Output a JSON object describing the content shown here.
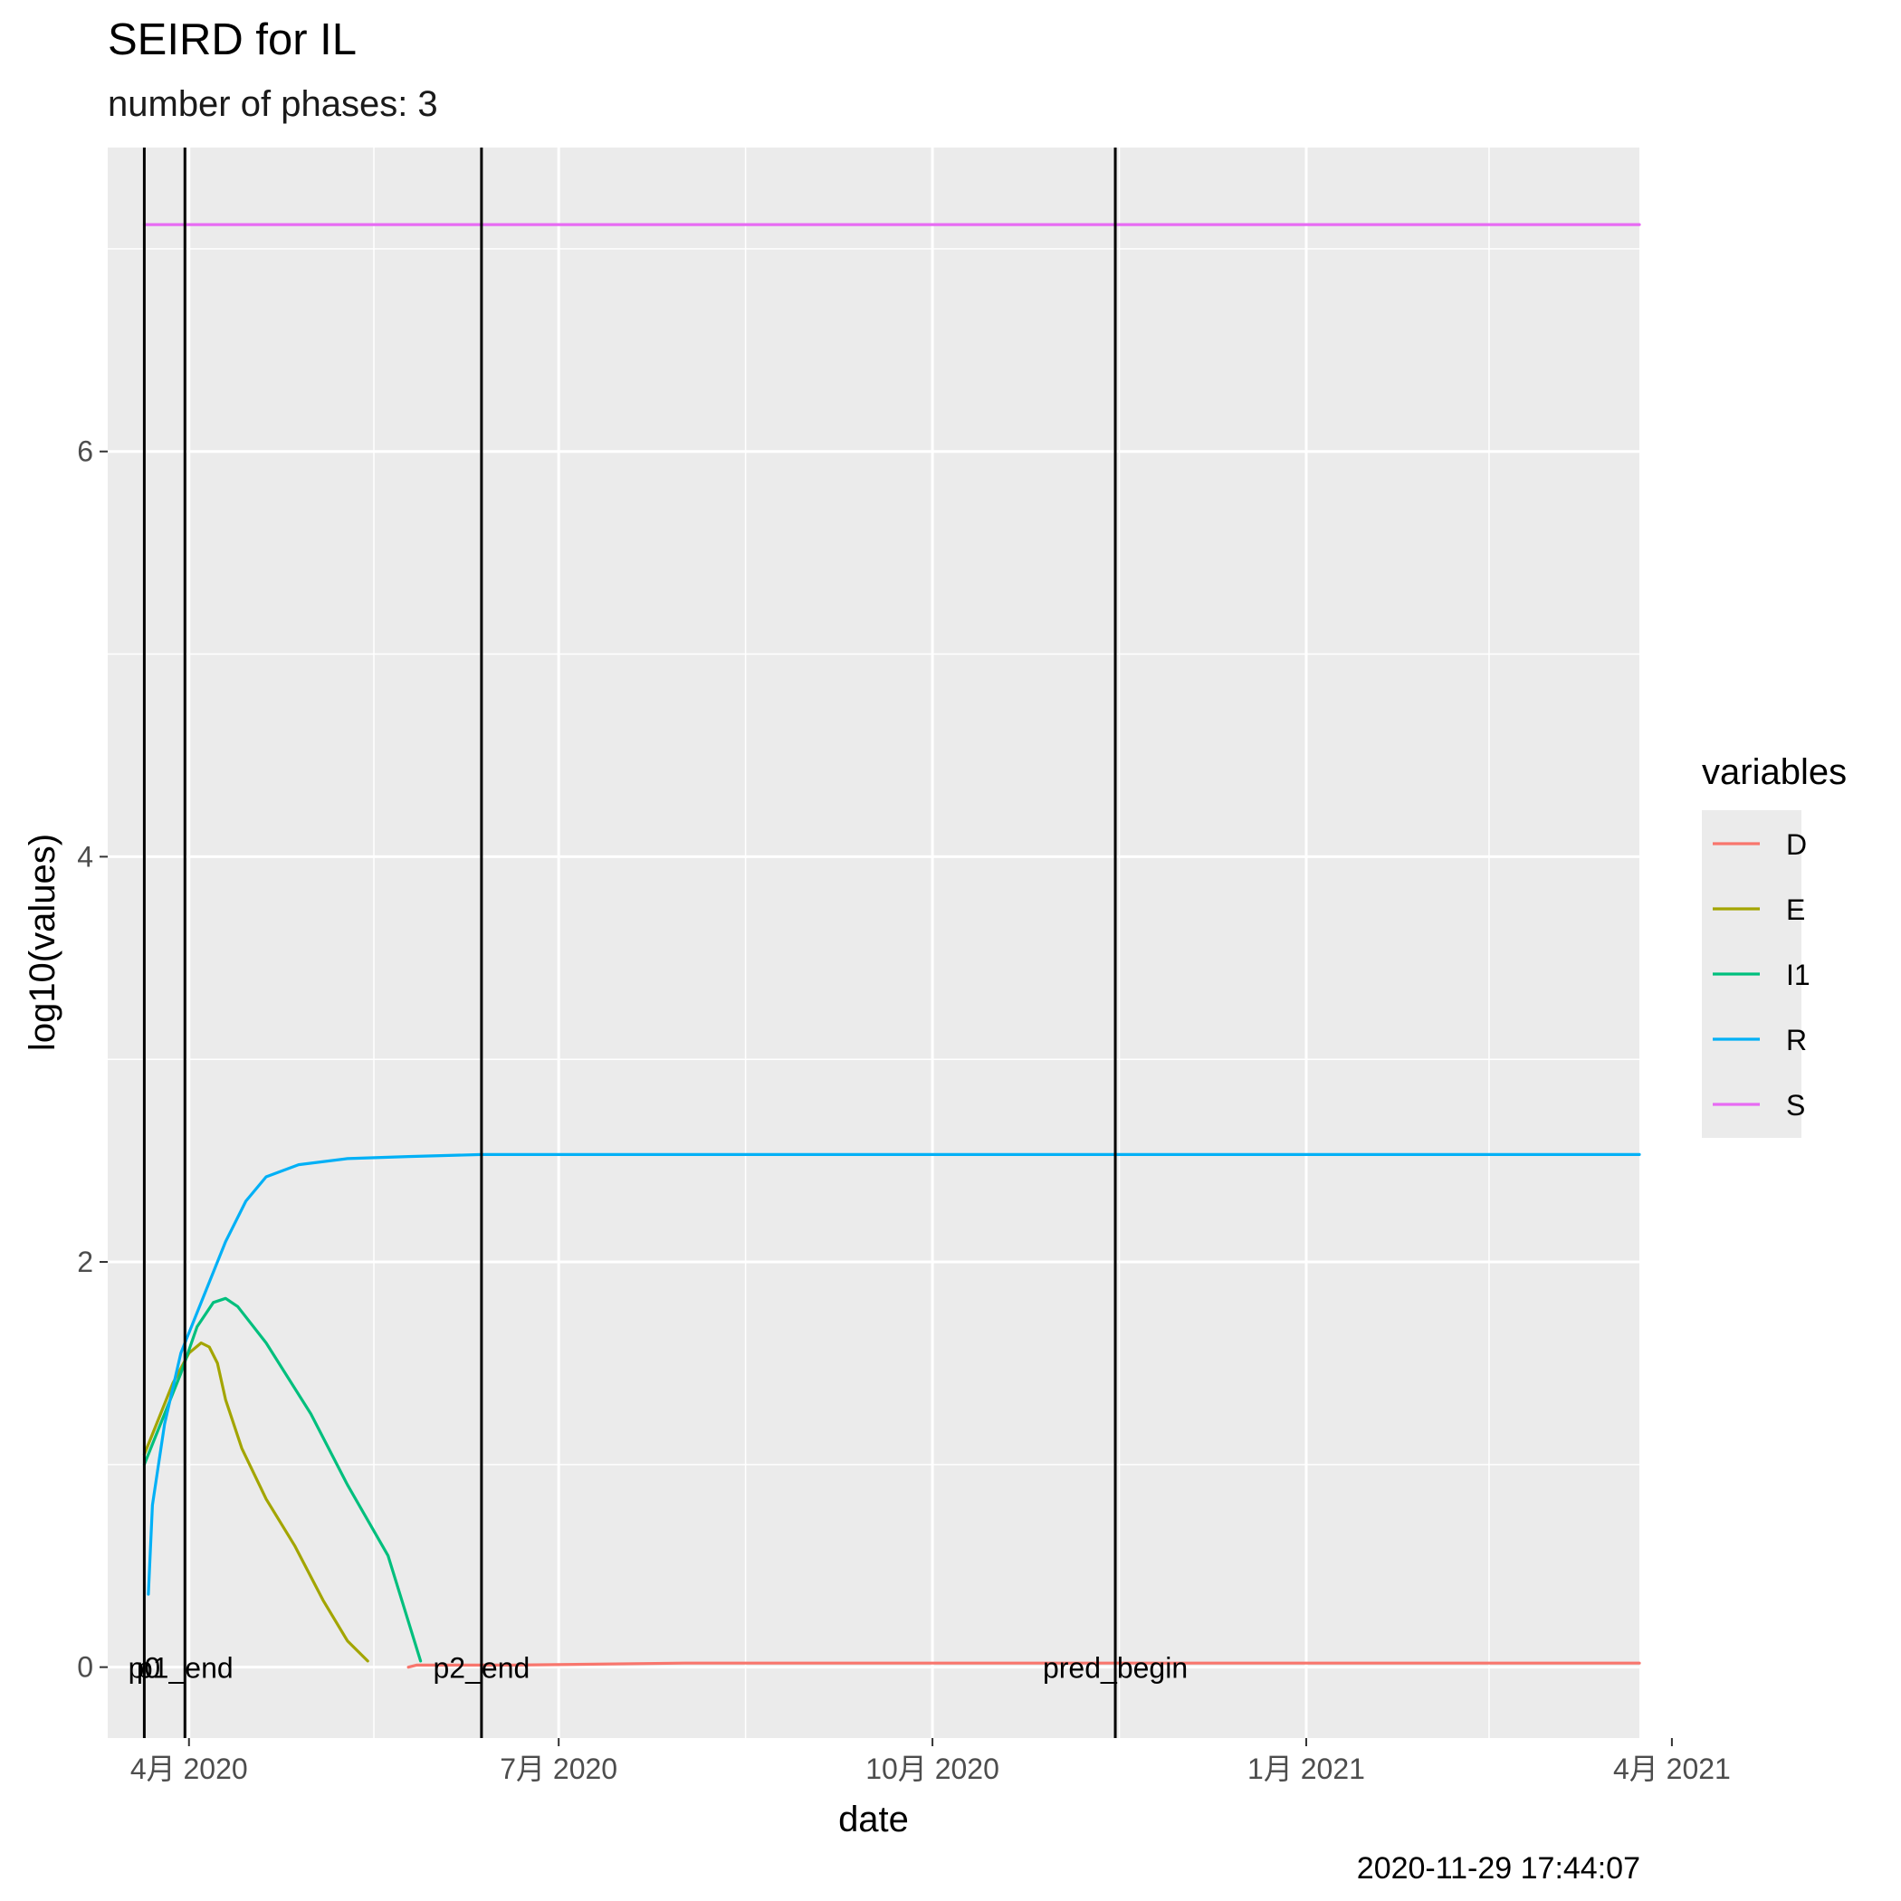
{
  "chart_data": {
    "type": "line",
    "title": "SEIRD for IL",
    "subtitle": "number of phases: 3",
    "caption": "2020-11-29 17:44:07",
    "xlabel": "date",
    "ylabel": "log10(values)",
    "xlim": [
      "2020-03-12",
      "2021-03-24"
    ],
    "ylim": [
      -0.35,
      7.5
    ],
    "y_ticks": [
      0,
      2,
      4,
      6
    ],
    "y_tick_labels": [
      "0",
      "2",
      "4",
      "6"
    ],
    "x_ticks": [
      "2020-04-01",
      "2020-07-01",
      "2020-10-01",
      "2021-01-01",
      "2021-04-01"
    ],
    "x_tick_labels": [
      "4月 2020",
      "7月 2020",
      "10月 2020",
      "1月 2021",
      "4月 2021"
    ],
    "grid": true,
    "legend": {
      "title": "variables",
      "position": "right"
    },
    "vlines": [
      {
        "date": "2020-03-21",
        "label": "p0"
      },
      {
        "date": "2020-03-31",
        "label": "p1_end"
      },
      {
        "date": "2020-06-12",
        "label": "p2_end"
      },
      {
        "date": "2020-11-15",
        "label": "pred_begin"
      }
    ],
    "series": [
      {
        "name": "D",
        "color": "#F8766D",
        "x": [
          "2020-05-25",
          "2020-05-27",
          "2020-06-01",
          "2020-06-20",
          "2020-08-01",
          "2020-11-15",
          "2021-03-24"
        ],
        "y": [
          0.0,
          0.01,
          0.01,
          0.01,
          0.02,
          0.02,
          0.02
        ]
      },
      {
        "name": "E",
        "color": "#A3A500",
        "x": [
          "2020-03-21",
          "2020-03-24",
          "2020-03-28",
          "2020-04-01",
          "2020-04-04",
          "2020-04-06",
          "2020-04-08",
          "2020-04-10",
          "2020-04-14",
          "2020-04-20",
          "2020-04-27",
          "2020-05-04",
          "2020-05-10",
          "2020-05-15"
        ],
        "y": [
          1.05,
          1.2,
          1.4,
          1.55,
          1.6,
          1.58,
          1.5,
          1.32,
          1.08,
          0.83,
          0.6,
          0.33,
          0.13,
          0.03
        ]
      },
      {
        "name": "I1",
        "color": "#00BF7D",
        "x": [
          "2020-03-21",
          "2020-03-25",
          "2020-03-30",
          "2020-04-03",
          "2020-04-07",
          "2020-04-10",
          "2020-04-13",
          "2020-04-20",
          "2020-05-01",
          "2020-05-10",
          "2020-05-20",
          "2020-05-28"
        ],
        "y": [
          1.0,
          1.2,
          1.45,
          1.68,
          1.8,
          1.82,
          1.78,
          1.6,
          1.25,
          0.9,
          0.55,
          0.03
        ]
      },
      {
        "name": "R",
        "color": "#00B0F6",
        "x": [
          "2020-03-22",
          "2020-03-23",
          "2020-03-26",
          "2020-03-30",
          "2020-04-05",
          "2020-04-10",
          "2020-04-15",
          "2020-04-20",
          "2020-04-28",
          "2020-05-10",
          "2020-05-25",
          "2020-06-12",
          "2020-11-15",
          "2021-03-24"
        ],
        "y": [
          0.36,
          0.8,
          1.2,
          1.55,
          1.85,
          2.1,
          2.3,
          2.42,
          2.48,
          2.51,
          2.52,
          2.53,
          2.53,
          2.53
        ]
      },
      {
        "name": "S",
        "color": "#E76BF3",
        "x": [
          "2020-03-21",
          "2021-03-24"
        ],
        "y": [
          7.12,
          7.12
        ]
      }
    ]
  }
}
